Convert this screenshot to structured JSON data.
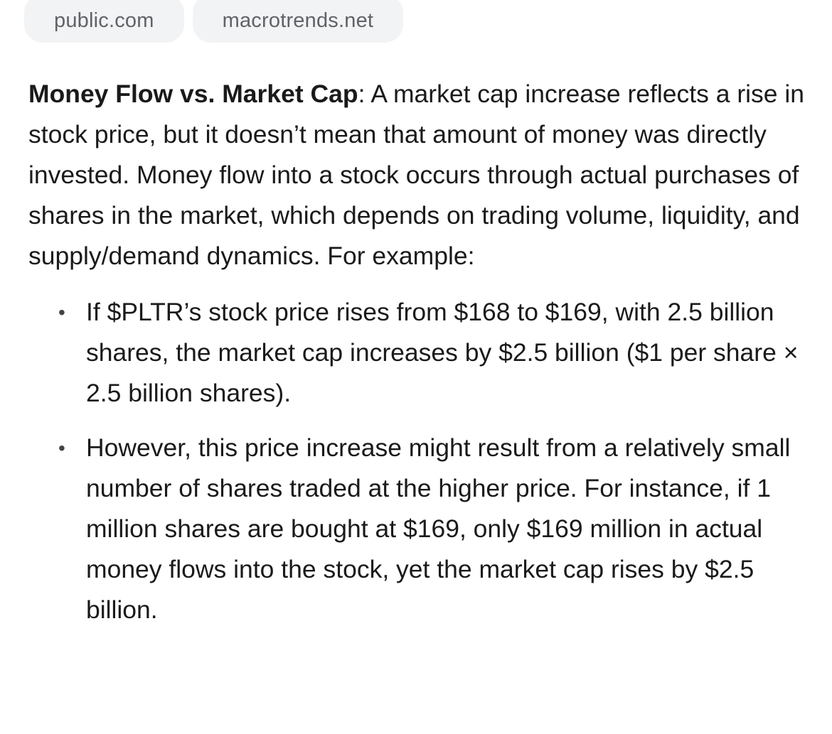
{
  "sources": [
    {
      "label": "public.com"
    },
    {
      "label": "macrotrends.net"
    }
  ],
  "article": {
    "lead_term": "Money Flow vs. Market Cap",
    "lead_text": ": A market cap increase reflects a rise in stock price, but it doesn’t mean that amount of money was directly invested. Money flow into a stock occurs through actual purchases of shares in the market, which depends on trading volume, liquidity, and supply/demand dynamics. For example:",
    "bullet_glyph": "•",
    "bullets": [
      {
        "text": "If $PLTR’s stock price rises from $168 to $169, with 2.5 billion shares, the market cap increases by $2.5 billion ($1 per share × 2.5 billion shares)."
      },
      {
        "text": "However, this price increase might result from a relatively small number of shares traded at the higher price. For instance, if 1 million shares are bought at $169, only $169 million in actual money flows into the stock, yet the market cap rises by $2.5 billion."
      }
    ]
  }
}
